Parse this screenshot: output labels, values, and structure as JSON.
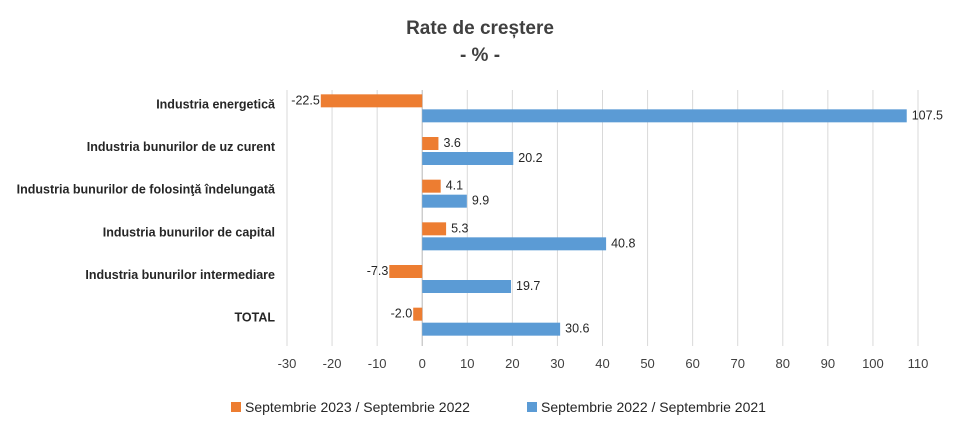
{
  "chart_data": {
    "type": "bar",
    "orientation": "horizontal",
    "title": "Rate de creștere",
    "subtitle": "- % -",
    "categories": [
      "Industria energetică",
      "Industria bunurilor de uz curent",
      "Industria bunurilor de folosinţă  îndelungată",
      "Industria bunurilor de capital",
      "Industria bunurilor intermediare",
      "TOTAL"
    ],
    "series": [
      {
        "name": "Septembrie 2023 / Septembrie 2022",
        "color": "#ED7D31",
        "values": [
          -22.5,
          3.6,
          4.1,
          5.3,
          -7.3,
          -2.0
        ]
      },
      {
        "name": "Septembrie 2022 / Septembrie 2021",
        "color": "#5B9BD5",
        "values": [
          107.5,
          20.2,
          9.9,
          40.8,
          19.7,
          30.6
        ]
      }
    ],
    "xlim": [
      -30,
      110
    ],
    "xticks": [
      "-30",
      "-20",
      "-10",
      "0",
      "10",
      "20",
      "30",
      "40",
      "50",
      "60",
      "70",
      "80",
      "90",
      "100",
      "110"
    ],
    "data_labels": [
      [
        "-22.5",
        "3.6",
        "4.1",
        "5.3",
        "-7.3",
        "-2.0"
      ],
      [
        "107.5",
        "20.2",
        "9.9",
        "40.8",
        "19.7",
        "30.6"
      ]
    ],
    "grid": true,
    "legend_position": "bottom"
  }
}
